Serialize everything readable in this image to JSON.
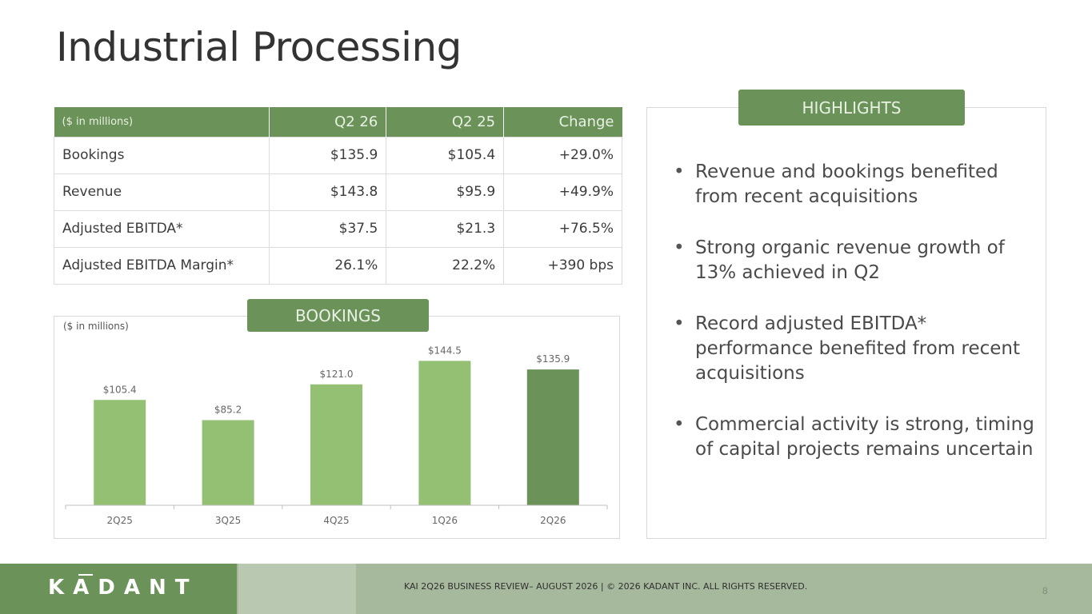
{
  "page": {
    "title": "Industrial Processing"
  },
  "table": {
    "headers": [
      "($ in millions)",
      "Q2 26",
      "Q2 25",
      "Change"
    ],
    "rows": [
      [
        "Bookings",
        "$135.9",
        "$105.4",
        "+29.0%"
      ],
      [
        "Revenue",
        "$143.8",
        "$95.9",
        "+49.9%"
      ],
      [
        "Adjusted EBITDA*",
        "$37.5",
        "$21.3",
        "+76.5%"
      ],
      [
        "Adjusted EBITDA Margin*",
        "26.1%",
        "22.2%",
        "+390 bps"
      ]
    ]
  },
  "highlights": {
    "label": "HIGHLIGHTS",
    "items": [
      "Revenue and bookings benefited from recent acquisitions",
      "Strong organic revenue growth of 13% achieved in Q2",
      "Record adjusted EBITDA* performance benefited from recent acquisitions",
      "Commercial activity is strong, timing of capital projects remains uncertain"
    ]
  },
  "bookings": {
    "label": "BOOKINGS",
    "unit_note": "($ in millions)"
  },
  "chart_data": {
    "type": "bar",
    "title": "BOOKINGS",
    "ylabel": "($ in millions)",
    "categories": [
      "2Q25",
      "3Q25",
      "4Q25",
      "1Q26",
      "2Q26"
    ],
    "values": [
      105.4,
      85.2,
      121.0,
      144.5,
      135.9
    ],
    "data_labels": [
      "$105.4",
      "$85.2",
      "$121.0",
      "$144.5",
      "$135.9"
    ],
    "ylim": [
      0,
      160
    ],
    "grid": false,
    "colors": {
      "default": "#93c073",
      "highlight": "#6b9259"
    },
    "highlight_index": 4
  },
  "footer": {
    "logo": "KADANT",
    "text": "KAI 2Q26 BUSINESS REVIEW– AUGUST 2026 | © 2026 KADANT INC. ALL RIGHTS RESERVED.",
    "page_number": "8"
  }
}
